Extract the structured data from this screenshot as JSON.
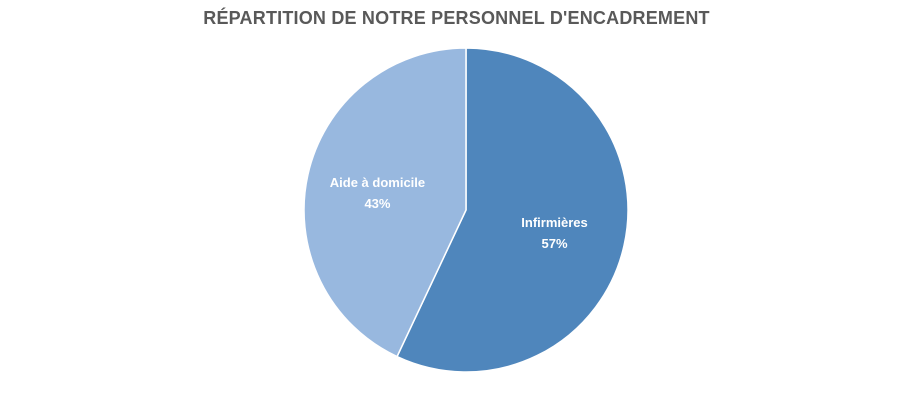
{
  "chart_data": {
    "type": "pie",
    "title": "RÉPARTITION DE NOTRE PERSONNEL D'ENCADREMENT",
    "start_angle_deg": 0,
    "direction": "clockwise",
    "slices": [
      {
        "label": "Infirmières",
        "value": 57,
        "percent_label": "57%",
        "color": "#4f86bc"
      },
      {
        "label": "Aide à domicile",
        "value": 43,
        "percent_label": "43%",
        "color": "#98b8df"
      }
    ]
  }
}
